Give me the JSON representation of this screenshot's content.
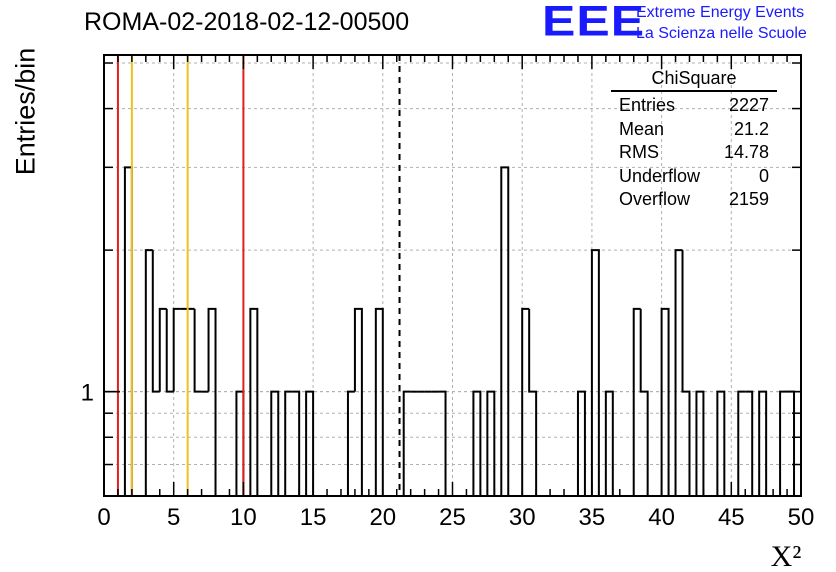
{
  "title": "ROMA-02-2018-02-12-00500",
  "logo": {
    "mark": "EEE",
    "line1": "Extreme Energy Events",
    "line2": "La Scienza nelle Scuole",
    "color": "#1a1aff"
  },
  "stats": {
    "title": "ChiSquare",
    "rows": [
      {
        "label": "Entries",
        "value": "2227"
      },
      {
        "label": "Mean",
        "value": "21.2"
      },
      {
        "label": "RMS",
        "value": "14.78"
      },
      {
        "label": "Underflow",
        "value": "0"
      },
      {
        "label": "Overflow",
        "value": "2159"
      }
    ]
  },
  "chart_data": {
    "type": "histogram",
    "title": "ROMA-02-2018-02-12-00500",
    "xlabel": "X²",
    "ylabel": "Entries/bin",
    "y_scale": "log",
    "xlim": [
      0,
      50
    ],
    "ylim": [
      0.6,
      5.2
    ],
    "bin_width": 0.5,
    "x_ticks": [
      "0",
      "5",
      "10",
      "15",
      "20",
      "25",
      "30",
      "35",
      "40",
      "45",
      "50"
    ],
    "y_ticks": [
      "1"
    ],
    "grid": true,
    "bins": [
      {
        "x0": 1.5,
        "count": 3
      },
      {
        "x0": 3.0,
        "count": 2
      },
      {
        "x0": 3.5,
        "count": 1
      },
      {
        "x0": 4.0,
        "count": 1.5
      },
      {
        "x0": 4.5,
        "count": 1
      },
      {
        "x0": 5.0,
        "count": 1.5
      },
      {
        "x0": 5.5,
        "count": 1.5
      },
      {
        "x0": 6.0,
        "count": 1.5
      },
      {
        "x0": 6.5,
        "count": 1
      },
      {
        "x0": 7.0,
        "count": 1
      },
      {
        "x0": 7.5,
        "count": 1.5
      },
      {
        "x0": 9.5,
        "count": 1
      },
      {
        "x0": 10.5,
        "count": 1.5
      },
      {
        "x0": 12.0,
        "count": 1
      },
      {
        "x0": 13.0,
        "count": 1
      },
      {
        "x0": 13.5,
        "count": 1
      },
      {
        "x0": 14.5,
        "count": 1
      },
      {
        "x0": 17.5,
        "count": 1
      },
      {
        "x0": 18.0,
        "count": 1.5
      },
      {
        "x0": 19.5,
        "count": 1.5
      },
      {
        "x0": 21.5,
        "count": 1
      },
      {
        "x0": 22.0,
        "count": 1
      },
      {
        "x0": 22.5,
        "count": 1
      },
      {
        "x0": 23.0,
        "count": 1
      },
      {
        "x0": 23.5,
        "count": 1
      },
      {
        "x0": 24.0,
        "count": 1
      },
      {
        "x0": 26.5,
        "count": 1
      },
      {
        "x0": 27.5,
        "count": 1
      },
      {
        "x0": 28.5,
        "count": 3
      },
      {
        "x0": 30.0,
        "count": 1.5
      },
      {
        "x0": 30.5,
        "count": 1
      },
      {
        "x0": 34.0,
        "count": 1
      },
      {
        "x0": 35.0,
        "count": 2
      },
      {
        "x0": 36.0,
        "count": 1
      },
      {
        "x0": 38.0,
        "count": 1.5
      },
      {
        "x0": 38.5,
        "count": 1
      },
      {
        "x0": 40.0,
        "count": 1.5
      },
      {
        "x0": 41.0,
        "count": 2
      },
      {
        "x0": 41.5,
        "count": 1
      },
      {
        "x0": 42.5,
        "count": 1
      },
      {
        "x0": 44.0,
        "count": 1
      },
      {
        "x0": 45.5,
        "count": 1
      },
      {
        "x0": 46.0,
        "count": 1
      },
      {
        "x0": 47.0,
        "count": 1
      },
      {
        "x0": 48.5,
        "count": 1
      },
      {
        "x0": 49.0,
        "count": 1
      }
    ],
    "markers": [
      {
        "x": 1.0,
        "color": "#e02020",
        "style": "solid"
      },
      {
        "x": 2.0,
        "color": "#f0c020",
        "style": "solid"
      },
      {
        "x": 6.0,
        "color": "#f0c020",
        "style": "solid"
      },
      {
        "x": 10.0,
        "color": "#e02020",
        "style": "solid"
      },
      {
        "x": 21.2,
        "color": "#000000",
        "style": "dashed"
      }
    ]
  }
}
